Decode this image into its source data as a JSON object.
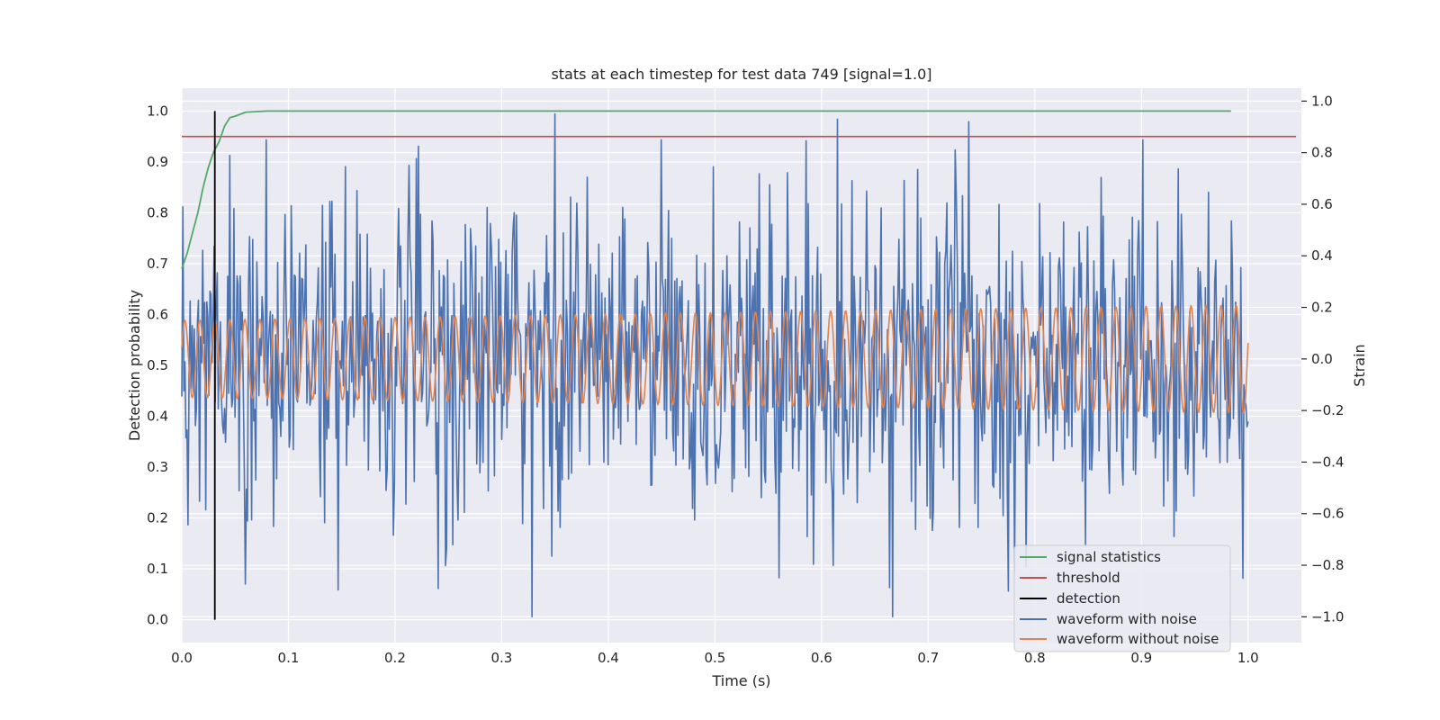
{
  "chart_data": {
    "type": "line",
    "title": "stats at each timestep for test data 749 [signal=1.0]",
    "xlabel": "Time (s)",
    "ylabel_left": "Detection probability",
    "ylabel_right": "Strain",
    "xlim": [
      0.0,
      1.05
    ],
    "ylim_left": [
      -0.045,
      1.045
    ],
    "ylim_right": [
      -1.1,
      1.05
    ],
    "xticks": [
      "0.0",
      "0.1",
      "0.2",
      "0.3",
      "0.4",
      "0.5",
      "0.6",
      "0.7",
      "0.8",
      "0.9",
      "1.0"
    ],
    "yticks_left": [
      "0.0",
      "0.1",
      "0.2",
      "0.3",
      "0.4",
      "0.5",
      "0.6",
      "0.7",
      "0.8",
      "0.9",
      "1.0"
    ],
    "yticks_right": [
      "−1.0",
      "−0.8",
      "−0.6",
      "−0.4",
      "−0.2",
      "0.0",
      "0.2",
      "0.4",
      "0.6",
      "0.8",
      "1.0"
    ],
    "grid": true,
    "legend_position": "lower-right",
    "series": [
      {
        "name": "signal statistics",
        "color": "#55a868",
        "axis": "left",
        "x": [
          0.0,
          0.005,
          0.01,
          0.015,
          0.02,
          0.025,
          0.03,
          0.035,
          0.04,
          0.045,
          0.05,
          0.06,
          0.07,
          0.08,
          0.1,
          0.2,
          0.4,
          0.6,
          0.8,
          0.984
        ],
        "y": [
          0.69,
          0.72,
          0.76,
          0.8,
          0.85,
          0.89,
          0.92,
          0.94,
          0.97,
          0.987,
          0.99,
          0.998,
          0.999,
          1.0,
          1.0,
          1.0,
          1.0,
          1.0,
          1.0,
          1.0
        ]
      },
      {
        "name": "threshold",
        "color": "#c44e52",
        "axis": "left",
        "x": [
          0.0,
          1.045
        ],
        "y": [
          0.95,
          0.95
        ]
      },
      {
        "name": "detection",
        "color": "#000000",
        "axis": "left",
        "x": [
          0.031,
          0.031
        ],
        "y": [
          0.0,
          1.0
        ]
      },
      {
        "name": "waveform with noise",
        "color": "#4c72b0",
        "axis": "right",
        "x_range": [
          0.0,
          1.0
        ],
        "n_points": 1024,
        "amplitude": 1.0,
        "note_peaks": [
          [
            0.35,
            0.95
          ],
          [
            0.615,
            0.93
          ],
          [
            0.738,
            0.92
          ],
          [
            0.328,
            -1.0
          ],
          [
            0.667,
            -1.0
          ],
          [
            0.995,
            -0.85
          ]
        ]
      },
      {
        "name": "waveform without noise",
        "color": "#dd8452",
        "axis": "right",
        "x_range": [
          0.0,
          1.0
        ],
        "amplitude_start": 0.15,
        "amplitude_end": 0.21,
        "cycles": 71
      }
    ]
  }
}
